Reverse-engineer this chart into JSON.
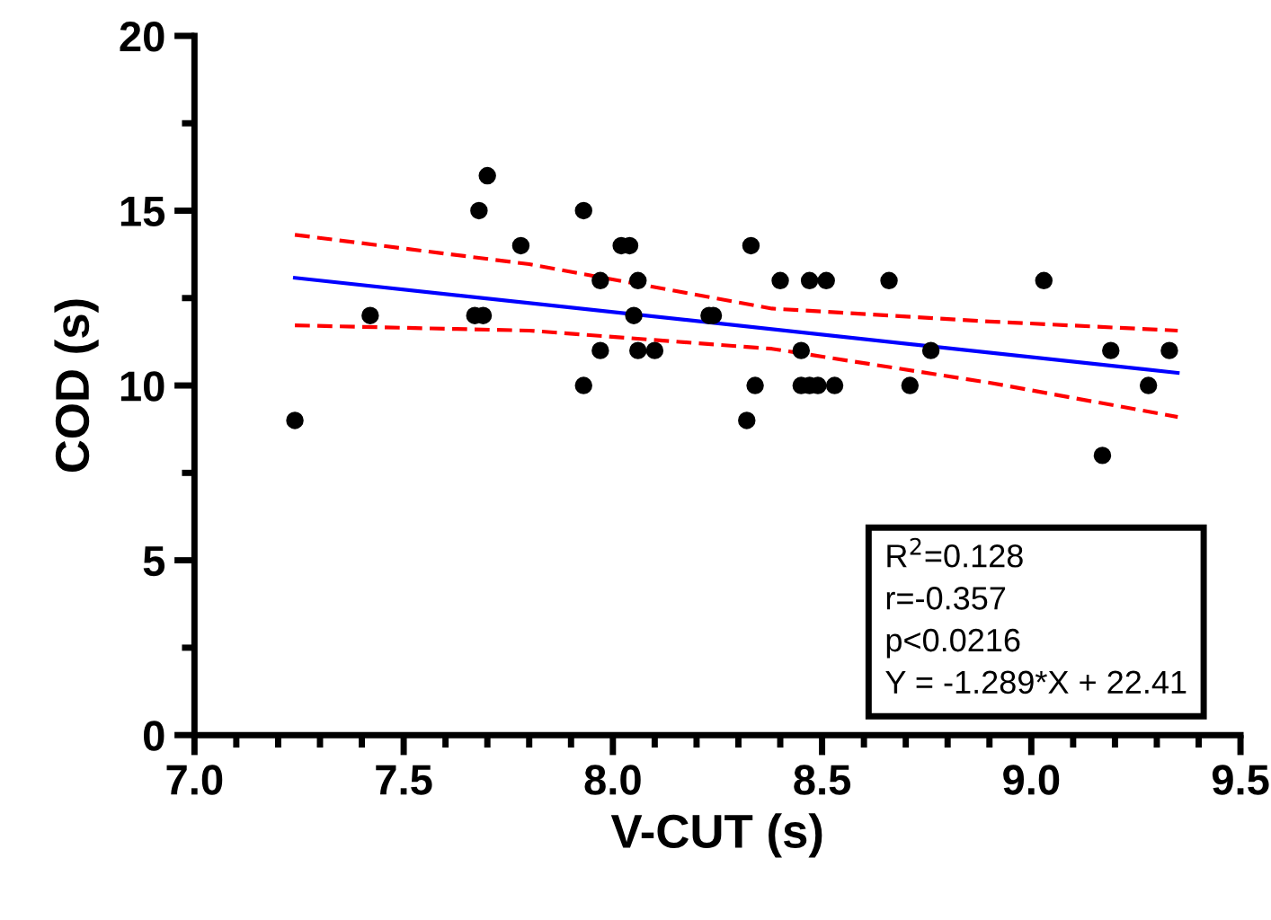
{
  "chart_data": {
    "type": "scatter",
    "xlabel": "V-CUT (s)",
    "ylabel": "COD (s)",
    "xlim": [
      7.0,
      9.5
    ],
    "ylim": [
      0,
      20
    ],
    "xticks": [
      {
        "value": 7.0,
        "label": "7.0"
      },
      {
        "value": 7.1,
        "label": null
      },
      {
        "value": 7.2,
        "label": null
      },
      {
        "value": 7.3,
        "label": null
      },
      {
        "value": 7.4,
        "label": null
      },
      {
        "value": 7.5,
        "label": "7.5"
      },
      {
        "value": 7.6,
        "label": null
      },
      {
        "value": 7.7,
        "label": null
      },
      {
        "value": 7.8,
        "label": null
      },
      {
        "value": 7.9,
        "label": null
      },
      {
        "value": 8.0,
        "label": "8.0"
      },
      {
        "value": 8.1,
        "label": null
      },
      {
        "value": 8.2,
        "label": null
      },
      {
        "value": 8.3,
        "label": null
      },
      {
        "value": 8.4,
        "label": null
      },
      {
        "value": 8.5,
        "label": "8.5"
      },
      {
        "value": 8.6,
        "label": null
      },
      {
        "value": 8.7,
        "label": null
      },
      {
        "value": 8.8,
        "label": null
      },
      {
        "value": 8.9,
        "label": null
      },
      {
        "value": 9.0,
        "label": "9.0"
      },
      {
        "value": 9.1,
        "label": null
      },
      {
        "value": 9.2,
        "label": null
      },
      {
        "value": 9.3,
        "label": null
      },
      {
        "value": 9.4,
        "label": null
      },
      {
        "value": 9.5,
        "label": "9.5"
      }
    ],
    "yticks": [
      0,
      {
        "value": 2.5,
        "label": null
      },
      5,
      {
        "value": 7.5,
        "label": null
      },
      10,
      {
        "value": 12.5,
        "label": null
      },
      15,
      {
        "value": 17.5,
        "label": null
      },
      20
    ],
    "grid": false,
    "series": [
      {
        "marker": "circle",
        "color": "#000000",
        "x": [
          7.24,
          7.42,
          7.68,
          7.7,
          7.67,
          7.69,
          7.78,
          7.93,
          7.93,
          7.97,
          7.97,
          8.02,
          8.04,
          8.06,
          8.05,
          8.06,
          8.1,
          8.23,
          8.24,
          8.33,
          8.32,
          8.34,
          8.4,
          8.47,
          8.51,
          8.66,
          9.03,
          8.45,
          8.76,
          9.19,
          9.33,
          8.45,
          8.47,
          8.49,
          8.53,
          8.71,
          9.28,
          9.17
        ],
        "values": [
          9,
          12,
          15,
          16,
          12,
          12,
          14,
          15,
          10,
          13,
          11,
          14,
          14,
          13,
          12,
          11,
          11,
          12,
          12,
          14,
          9,
          10,
          13,
          13,
          13,
          13,
          13,
          11,
          11,
          11,
          11,
          10,
          10,
          10,
          10,
          10,
          10,
          8
        ]
      },
      {
        "type": "line",
        "marker": "none",
        "color": "#0000ff",
        "line_style": "solid",
        "x": [
          7.24,
          9.35
        ],
        "values": [
          13.08,
          10.36
        ]
      },
      {
        "type": "line",
        "marker": "none",
        "color": "#ff0000",
        "line_style": "dashed",
        "x": [
          7.24,
          7.8,
          8.38,
          8.9,
          9.35
        ],
        "values": [
          14.31,
          13.47,
          12.2,
          11.83,
          11.57
        ]
      },
      {
        "type": "line",
        "marker": "none",
        "color": "#ff0000",
        "line_style": "dashed",
        "x": [
          7.24,
          7.8,
          8.38,
          8.9,
          9.35
        ],
        "values": [
          11.72,
          11.57,
          11.05,
          10.08,
          9.1
        ]
      }
    ],
    "annotations": [
      "R$^{2}$=0.128\nr=-0.357\np<0.0216\nY = -1.289*X + 22.41"
    ]
  }
}
